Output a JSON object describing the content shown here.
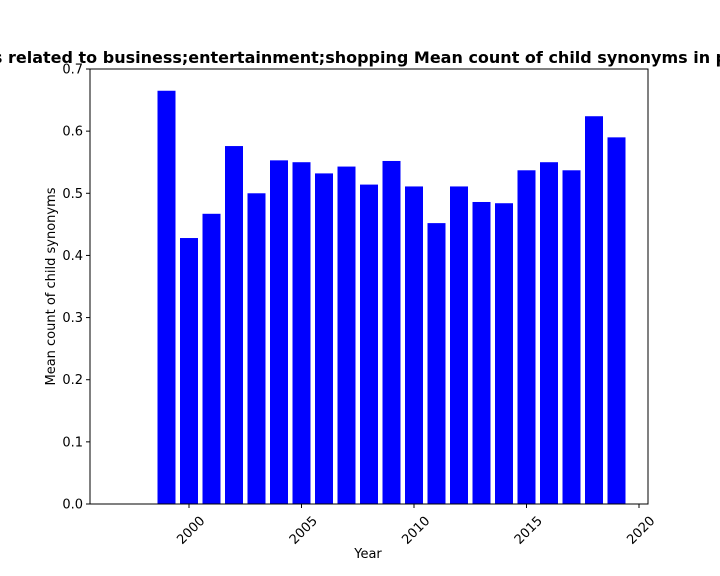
{
  "chart_data": {
    "type": "bar",
    "title": "s related to business;entertainment;shopping Mean count of child synonyms in p",
    "xlabel": "Year",
    "ylabel": "Mean count of child synonyms",
    "bar_color": "#0000ff",
    "x": [
      1999,
      2000,
      2001,
      2002,
      2003,
      2004,
      2005,
      2006,
      2007,
      2008,
      2009,
      2010,
      2011,
      2012,
      2013,
      2014,
      2015,
      2016,
      2017,
      2018,
      2019
    ],
    "values": [
      0.665,
      0.428,
      0.467,
      0.576,
      0.5,
      0.553,
      0.55,
      0.532,
      0.543,
      0.514,
      0.552,
      0.511,
      0.452,
      0.511,
      0.486,
      0.484,
      0.537,
      0.55,
      0.537,
      0.624,
      0.59
    ],
    "xlim": [
      1995.6,
      2020.4
    ],
    "ylim": [
      0,
      0.7
    ],
    "xticks": [
      2000,
      2005,
      2010,
      2015,
      2020
    ],
    "xtick_labels": [
      "2000",
      "2005",
      "2010",
      "2015",
      "2020"
    ],
    "yticks": [
      0.0,
      0.1,
      0.2,
      0.3,
      0.4,
      0.5,
      0.6,
      0.7
    ],
    "ytick_labels": [
      "0.0",
      "0.1",
      "0.2",
      "0.3",
      "0.4",
      "0.5",
      "0.6",
      "0.7"
    ],
    "grid": false,
    "legend": "none"
  }
}
